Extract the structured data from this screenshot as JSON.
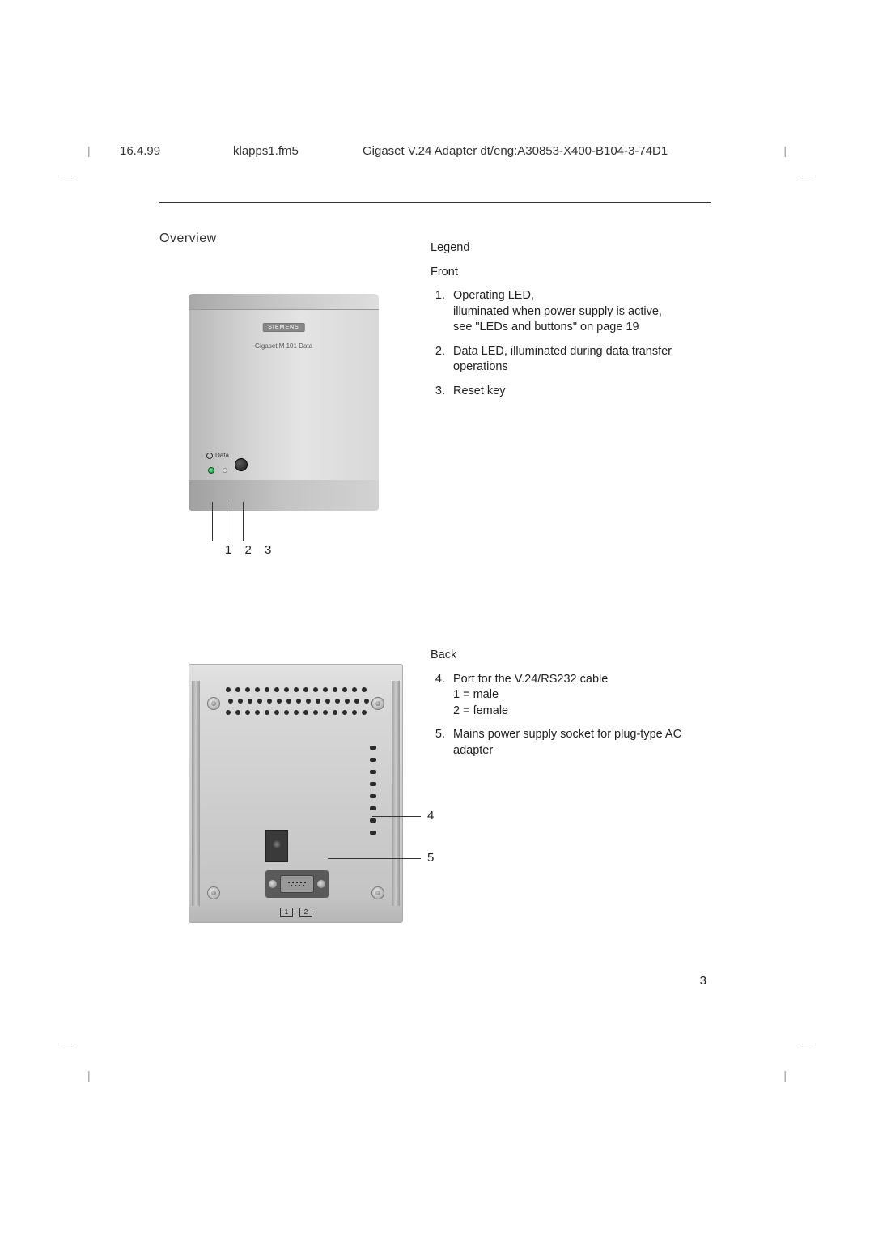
{
  "header": {
    "date": "16.4.99",
    "file": "klapps1.fm5",
    "title": "Gigaset V.24 Adapter dt/eng:A30853-X400-B104-3-74D1"
  },
  "overview_label": "Overview",
  "legend": {
    "title": "Legend",
    "front_label": "Front",
    "front_items": [
      {
        "num": "1.",
        "text": "Operating LED,\nilluminated when power supply is active,\nsee \"LEDs and buttons\" on page 19"
      },
      {
        "num": "2.",
        "text": "Data LED, illuminated during data transfer operations"
      },
      {
        "num": "3.",
        "text": "Reset key"
      }
    ],
    "back_label": "Back",
    "back_items": [
      {
        "num": "4.",
        "text": "Port for the V.24/RS232 cable\n1 = male\n2 = female"
      },
      {
        "num": "5.",
        "text": "Mains power supply socket for plug-type AC adapter"
      }
    ]
  },
  "front_callouts": "1 2  3",
  "back_callouts": {
    "c4": "4",
    "c5": "5"
  },
  "device": {
    "brand": "SIEMENS",
    "model": "Gigaset M 101 Data",
    "data_label": "Data",
    "port_labels": {
      "l1": "1",
      "l2": "2"
    }
  },
  "page_number": "3",
  "colors": {
    "text": "#222222",
    "rule": "#333333",
    "device_light": "#e4e4e4",
    "device_dark": "#b8b8b8",
    "led_green": "#178a3e"
  },
  "typography": {
    "body_fontsize_pt": 11,
    "overview_fontsize_pt": 12
  }
}
